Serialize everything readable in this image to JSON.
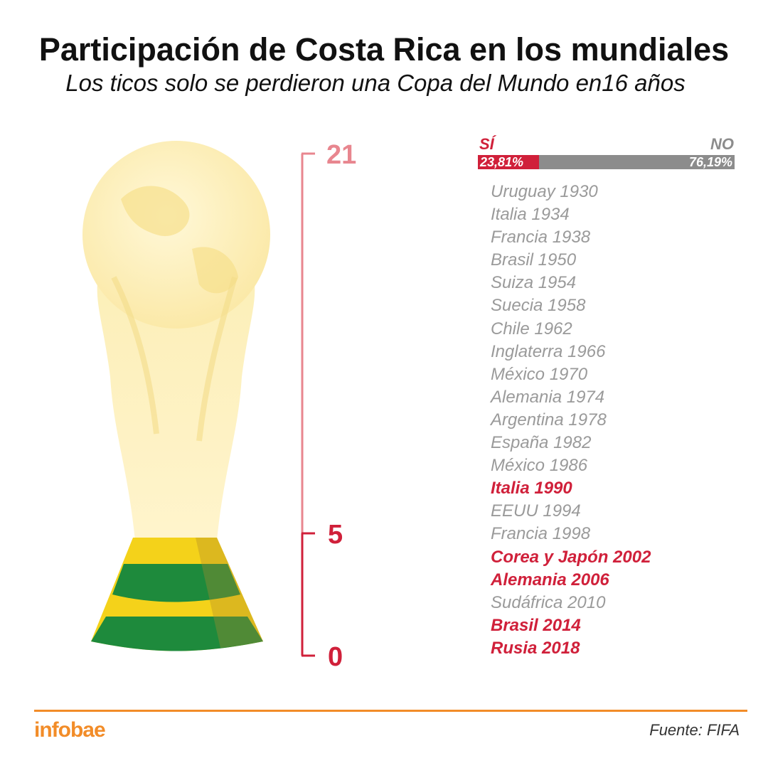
{
  "header": {
    "title": "Participación de Costa Rica en los mundiales",
    "subtitle": "Los ticos solo se perdieron una Copa del Mundo en16 años"
  },
  "colors": {
    "accent_red": "#d0203a",
    "scale_pink": "#e8868f",
    "no_gray": "#8c8c8c",
    "brand_orange": "#f28c28",
    "trophy_green": "#1e8a3c",
    "trophy_yellow": "#f4d21a"
  },
  "scale": {
    "max_label": "21",
    "mid_label": "5",
    "min_label": "0"
  },
  "ratio_bar": {
    "si_label": "SÍ",
    "no_label": "NO",
    "si_percent": "23,81%",
    "no_percent": "76,19%"
  },
  "chart_data": {
    "type": "bar",
    "categories": [
      "SÍ",
      "NO"
    ],
    "values": [
      23.81,
      76.19
    ],
    "participations": 5,
    "total_world_cups": 21,
    "world_cups": [
      {
        "label": "Uruguay 1930",
        "participated": false
      },
      {
        "label": "Italia 1934",
        "participated": false
      },
      {
        "label": "Francia 1938",
        "participated": false
      },
      {
        "label": "Brasil 1950",
        "participated": false
      },
      {
        "label": "Suiza 1954",
        "participated": false
      },
      {
        "label": "Suecia 1958",
        "participated": false
      },
      {
        "label": "Chile 1962",
        "participated": false
      },
      {
        "label": "Inglaterra 1966",
        "participated": false
      },
      {
        "label": "México 1970",
        "participated": false
      },
      {
        "label": "Alemania 1974",
        "participated": false
      },
      {
        "label": "Argentina 1978",
        "participated": false
      },
      {
        "label": "España 1982",
        "participated": false
      },
      {
        "label": "México 1986",
        "participated": false
      },
      {
        "label": "Italia 1990",
        "participated": true
      },
      {
        "label": "EEUU 1994",
        "participated": false
      },
      {
        "label": "Francia 1998",
        "participated": false
      },
      {
        "label": "Corea y Japón 2002",
        "participated": true
      },
      {
        "label": "Alemania 2006",
        "participated": true
      },
      {
        "label": "Sudáfrica 2010",
        "participated": false
      },
      {
        "label": "Brasil 2014",
        "participated": true
      },
      {
        "label": "Rusia 2018",
        "participated": true
      }
    ]
  },
  "footer": {
    "brand": "infobae",
    "source": "Fuente: FIFA"
  }
}
